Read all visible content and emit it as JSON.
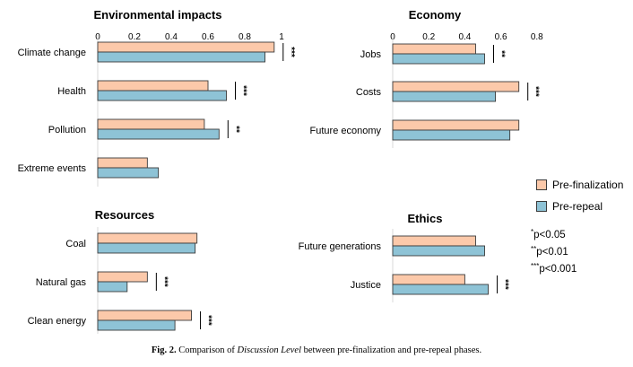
{
  "colors": {
    "pre_finalization": "#fcc9aa",
    "pre_repeal": "#8ec3d6",
    "bar_stroke": "#3a3a3a"
  },
  "legend": {
    "pre_finalization": "Pre-finalization",
    "pre_repeal": "Pre-repeal"
  },
  "significance_key": [
    {
      "marker": "*",
      "text": "p<0.05"
    },
    {
      "marker": "**",
      "text": "p<0.01"
    },
    {
      "marker": "***",
      "text": "p<0.001"
    }
  ],
  "caption": {
    "label": "Fig. 2.",
    "prefix": "Comparison of",
    "emphasis": "Discussion Level",
    "suffix": "between pre-finalization and pre-repeal phases."
  },
  "chart_data": [
    {
      "type": "bar",
      "title": "Environmental impacts",
      "xlim": [
        0,
        1
      ],
      "ticks": [
        "0",
        "0.2",
        "0.4",
        "0.6",
        "0.8",
        "1"
      ],
      "tick_values": [
        0,
        0.2,
        0.4,
        0.6,
        0.8,
        1
      ],
      "categories": [
        "Climate change",
        "Health",
        "Pollution",
        "Extreme events"
      ],
      "series": [
        {
          "name": "Pre-finalization",
          "values": [
            0.96,
            0.6,
            0.58,
            0.27
          ]
        },
        {
          "name": "Pre-repeal",
          "values": [
            0.91,
            0.7,
            0.66,
            0.33
          ]
        }
      ],
      "significance": [
        "***",
        "***",
        "**",
        ""
      ]
    },
    {
      "type": "bar",
      "title": "Economy",
      "xlim": [
        0,
        0.8
      ],
      "ticks": [
        "0",
        "0.2",
        "0.4",
        "0.6",
        "0.8"
      ],
      "tick_values": [
        0,
        0.2,
        0.4,
        0.6,
        0.8
      ],
      "categories": [
        "Jobs",
        "Costs",
        "Future economy"
      ],
      "series": [
        {
          "name": "Pre-finalization",
          "values": [
            0.46,
            0.7,
            0.7
          ]
        },
        {
          "name": "Pre-repeal",
          "values": [
            0.51,
            0.57,
            0.65
          ]
        }
      ],
      "significance": [
        "**",
        "***",
        ""
      ]
    },
    {
      "type": "bar",
      "title": "Resources",
      "xlim": [
        0,
        1
      ],
      "categories": [
        "Coal",
        "Natural gas",
        "Clean energy"
      ],
      "series": [
        {
          "name": "Pre-finalization",
          "values": [
            0.54,
            0.27,
            0.51
          ]
        },
        {
          "name": "Pre-repeal",
          "values": [
            0.53,
            0.16,
            0.42
          ]
        }
      ],
      "significance": [
        "",
        "***",
        "***"
      ]
    },
    {
      "type": "bar",
      "title": "Ethics",
      "xlim": [
        0,
        0.8
      ],
      "categories": [
        "Future generations",
        "Justice"
      ],
      "series": [
        {
          "name": "Pre-finalization",
          "values": [
            0.46,
            0.4
          ]
        },
        {
          "name": "Pre-repeal",
          "values": [
            0.51,
            0.53
          ]
        }
      ],
      "significance": [
        "",
        "***"
      ]
    }
  ]
}
